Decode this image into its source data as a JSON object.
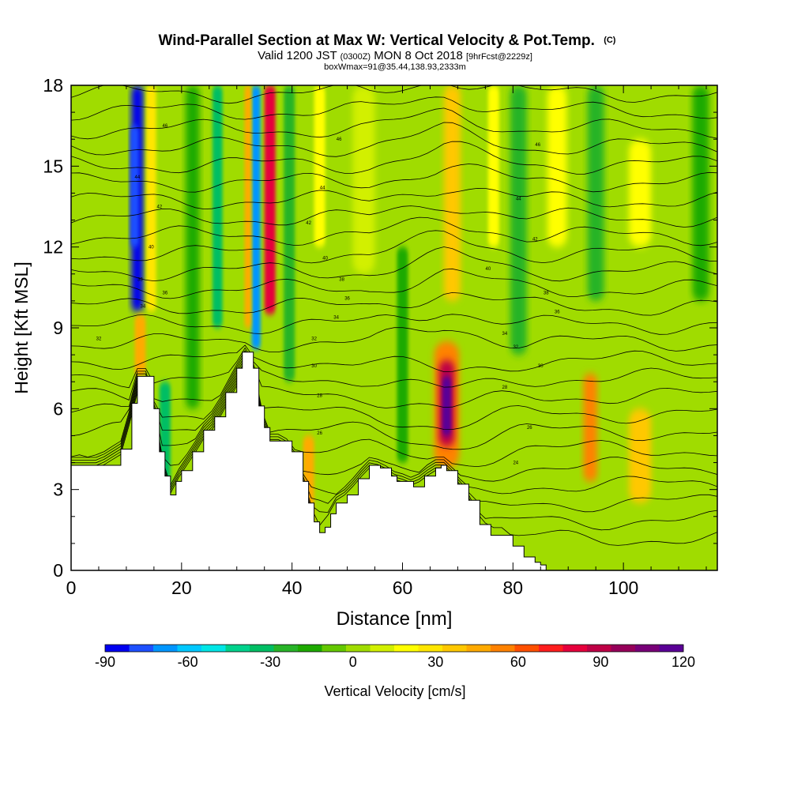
{
  "chart_data": {
    "type": "heatmap",
    "title": "Wind-Parallel Section at Max W: Vertical Velocity & Pot.Temp.",
    "title_mark": "(C)",
    "subtitle": {
      "valid_prefix": "Valid 1200 JST",
      "utc_time": "(0300Z)",
      "date": "MON 8 Oct 2018",
      "forecast": "[9hrFcst@2229z]",
      "box_info": "boxWmax=91@35.44,138.93,2333m"
    },
    "xlabel": "Distance [nm]",
    "ylabel": "Height [Kft MSL]",
    "xlim": [
      0,
      117
    ],
    "ylim": [
      0,
      18
    ],
    "x_ticks": [
      "0",
      "20",
      "40",
      "60",
      "80",
      "100"
    ],
    "y_ticks": [
      "0",
      "3",
      "6",
      "9",
      "12",
      "15",
      "18"
    ],
    "colorbar": {
      "label": "Vertical Velocity [cm/s]",
      "ticks": [
        "-90",
        "-60",
        "-30",
        "0",
        "30",
        "60",
        "90",
        "120"
      ],
      "range": [
        -90,
        120
      ],
      "colors": [
        "#0000f0",
        "#1e50ff",
        "#0096ff",
        "#00c8ff",
        "#00e6e6",
        "#00d28c",
        "#00be64",
        "#28b428",
        "#1eaa00",
        "#64c800",
        "#a0dc00",
        "#d2f000",
        "#ffff00",
        "#ffe600",
        "#ffc800",
        "#ffaa00",
        "#ff8200",
        "#ff5000",
        "#ff1e1e",
        "#e6003c",
        "#be0046",
        "#96005a",
        "#780078",
        "#5a0096"
      ]
    },
    "terrain_profile": {
      "distance_nm": [
        0,
        5,
        9,
        11,
        12,
        14,
        15,
        16,
        17,
        18,
        19,
        20,
        22,
        24,
        26,
        28,
        30,
        31,
        32,
        33,
        34,
        35,
        36,
        38,
        40,
        42,
        43,
        44,
        45,
        46,
        47,
        48,
        50,
        52,
        54,
        56,
        58,
        59,
        60,
        62,
        64,
        66,
        67,
        68,
        70,
        72,
        74,
        76,
        78,
        80,
        82,
        84,
        85,
        86,
        88,
        90,
        95,
        100,
        110,
        117
      ],
      "height_kft": [
        3.9,
        3.9,
        4.5,
        6.2,
        7.2,
        7.2,
        6.0,
        4.4,
        3.5,
        2.8,
        3.3,
        3.7,
        4.4,
        5.2,
        5.7,
        6.6,
        7.5,
        8.1,
        8.1,
        7.5,
        6.1,
        5.3,
        4.8,
        4.8,
        4.4,
        3.3,
        2.5,
        1.8,
        1.4,
        1.6,
        2.1,
        2.5,
        2.8,
        3.4,
        3.9,
        3.8,
        3.5,
        3.3,
        3.3,
        3.1,
        3.5,
        3.8,
        3.9,
        3.7,
        3.2,
        2.6,
        1.7,
        1.3,
        1.3,
        0.9,
        0.5,
        0.3,
        0.2,
        0.0,
        0.0,
        0.0,
        0.0,
        0.0,
        0.0,
        0.0
      ]
    },
    "w_features": [
      {
        "center_nm": 12,
        "width_nm": 2.2,
        "top_kft": 18,
        "bottom_kft": 9.6,
        "w_cms": -85
      },
      {
        "center_nm": 11.5,
        "width_nm": 1.5,
        "top_kft": 16.5,
        "bottom_kft": 12,
        "w_cms": -75
      },
      {
        "center_nm": 14.5,
        "width_nm": 1.8,
        "top_kft": 18,
        "bottom_kft": 9.6,
        "w_cms": 30
      },
      {
        "center_nm": 12.5,
        "width_nm": 2,
        "top_kft": 9.5,
        "bottom_kft": 7.2,
        "w_cms": 45
      },
      {
        "center_nm": 17,
        "width_nm": 2,
        "top_kft": 7,
        "bottom_kft": 3,
        "w_cms": -30
      },
      {
        "center_nm": 22,
        "width_nm": 2.5,
        "top_kft": 18,
        "bottom_kft": 6,
        "w_cms": -20
      },
      {
        "center_nm": 26.5,
        "width_nm": 1.8,
        "top_kft": 18,
        "bottom_kft": 9,
        "w_cms": -35
      },
      {
        "center_nm": 33.5,
        "width_nm": 1.6,
        "top_kft": 18,
        "bottom_kft": 8.2,
        "w_cms": -65
      },
      {
        "center_nm": 36,
        "width_nm": 2,
        "top_kft": 18,
        "bottom_kft": 9.5,
        "w_cms": 80
      },
      {
        "center_nm": 32,
        "width_nm": 1.2,
        "top_kft": 18,
        "bottom_kft": 9,
        "w_cms": 45
      },
      {
        "center_nm": 39.5,
        "width_nm": 2,
        "top_kft": 18,
        "bottom_kft": 7,
        "w_cms": -25
      },
      {
        "center_nm": 43,
        "width_nm": 2,
        "top_kft": 5,
        "bottom_kft": 1.5,
        "w_cms": 45
      },
      {
        "center_nm": 45,
        "width_nm": 2,
        "top_kft": 18,
        "bottom_kft": 12,
        "w_cms": 20
      },
      {
        "center_nm": 53,
        "width_nm": 4,
        "top_kft": 18,
        "bottom_kft": 11,
        "w_cms": 12
      },
      {
        "center_nm": 60,
        "width_nm": 2,
        "top_kft": 12,
        "bottom_kft": 4,
        "w_cms": -20
      },
      {
        "center_nm": 68,
        "width_nm": 4.5,
        "top_kft": 8.5,
        "bottom_kft": 3.8,
        "w_cms": 50
      },
      {
        "center_nm": 68,
        "width_nm": 2.8,
        "top_kft": 7.8,
        "bottom_kft": 4.6,
        "w_cms": 85
      },
      {
        "center_nm": 68,
        "width_nm": 1.6,
        "top_kft": 7.2,
        "bottom_kft": 5.0,
        "w_cms": 115
      },
      {
        "center_nm": 69,
        "width_nm": 3,
        "top_kft": 18,
        "bottom_kft": 10,
        "w_cms": 35
      },
      {
        "center_nm": 76.5,
        "width_nm": 2,
        "top_kft": 18,
        "bottom_kft": 12,
        "w_cms": 20
      },
      {
        "center_nm": 81,
        "width_nm": 3,
        "top_kft": 18,
        "bottom_kft": 8,
        "w_cms": -25
      },
      {
        "center_nm": 88,
        "width_nm": 3.5,
        "top_kft": 18,
        "bottom_kft": 12,
        "w_cms": 15
      },
      {
        "center_nm": 94,
        "width_nm": 2.5,
        "top_kft": 7.3,
        "bottom_kft": 3.3,
        "w_cms": 55
      },
      {
        "center_nm": 95,
        "width_nm": 3,
        "top_kft": 18,
        "bottom_kft": 10,
        "w_cms": -25
      },
      {
        "center_nm": 103,
        "width_nm": 4,
        "top_kft": 6,
        "bottom_kft": 2.5,
        "w_cms": 35
      },
      {
        "center_nm": 103,
        "width_nm": 4,
        "top_kft": 16,
        "bottom_kft": 12,
        "w_cms": 15
      },
      {
        "center_nm": 114,
        "width_nm": 3,
        "top_kft": 18,
        "bottom_kft": 10,
        "w_cms": -20
      }
    ],
    "isentrope_labels": [
      {
        "text": "46",
        "x_nm": 17,
        "y_kft": 16.5
      },
      {
        "text": "46",
        "x_nm": 48.5,
        "y_kft": 16.0
      },
      {
        "text": "46",
        "x_nm": 84.5,
        "y_kft": 15.8
      },
      {
        "text": "44",
        "x_nm": 12,
        "y_kft": 14.6
      },
      {
        "text": "44",
        "x_nm": 45.5,
        "y_kft": 14.2
      },
      {
        "text": "44",
        "x_nm": 81,
        "y_kft": 13.8
      },
      {
        "text": "42",
        "x_nm": 16,
        "y_kft": 13.5
      },
      {
        "text": "42",
        "x_nm": 43,
        "y_kft": 12.9
      },
      {
        "text": "42",
        "x_nm": 84,
        "y_kft": 12.3
      },
      {
        "text": "40",
        "x_nm": 14.5,
        "y_kft": 12.0
      },
      {
        "text": "40",
        "x_nm": 46,
        "y_kft": 11.6
      },
      {
        "text": "40",
        "x_nm": 75.5,
        "y_kft": 11.2
      },
      {
        "text": "38",
        "x_nm": 12.5,
        "y_kft": 10.8
      },
      {
        "text": "38",
        "x_nm": 49,
        "y_kft": 10.8
      },
      {
        "text": "38",
        "x_nm": 86,
        "y_kft": 10.3
      },
      {
        "text": "36",
        "x_nm": 17,
        "y_kft": 10.3
      },
      {
        "text": "36",
        "x_nm": 50,
        "y_kft": 10.1
      },
      {
        "text": "36",
        "x_nm": 88,
        "y_kft": 9.6
      },
      {
        "text": "34",
        "x_nm": 13,
        "y_kft": 9.8
      },
      {
        "text": "34",
        "x_nm": 48,
        "y_kft": 9.4
      },
      {
        "text": "34",
        "x_nm": 78.5,
        "y_kft": 8.8
      },
      {
        "text": "32",
        "x_nm": 5,
        "y_kft": 8.6
      },
      {
        "text": "32",
        "x_nm": 44,
        "y_kft": 8.6
      },
      {
        "text": "32",
        "x_nm": 80.5,
        "y_kft": 8.3
      },
      {
        "text": "30",
        "x_nm": 44,
        "y_kft": 7.6
      },
      {
        "text": "30",
        "x_nm": 85,
        "y_kft": 7.6
      },
      {
        "text": "28",
        "x_nm": 45,
        "y_kft": 6.5
      },
      {
        "text": "28",
        "x_nm": 78.5,
        "y_kft": 6.8
      },
      {
        "text": "26",
        "x_nm": 45,
        "y_kft": 5.1
      },
      {
        "text": "26",
        "x_nm": 83,
        "y_kft": 5.3
      },
      {
        "text": "24",
        "x_nm": 80.5,
        "y_kft": 4.0
      }
    ]
  }
}
